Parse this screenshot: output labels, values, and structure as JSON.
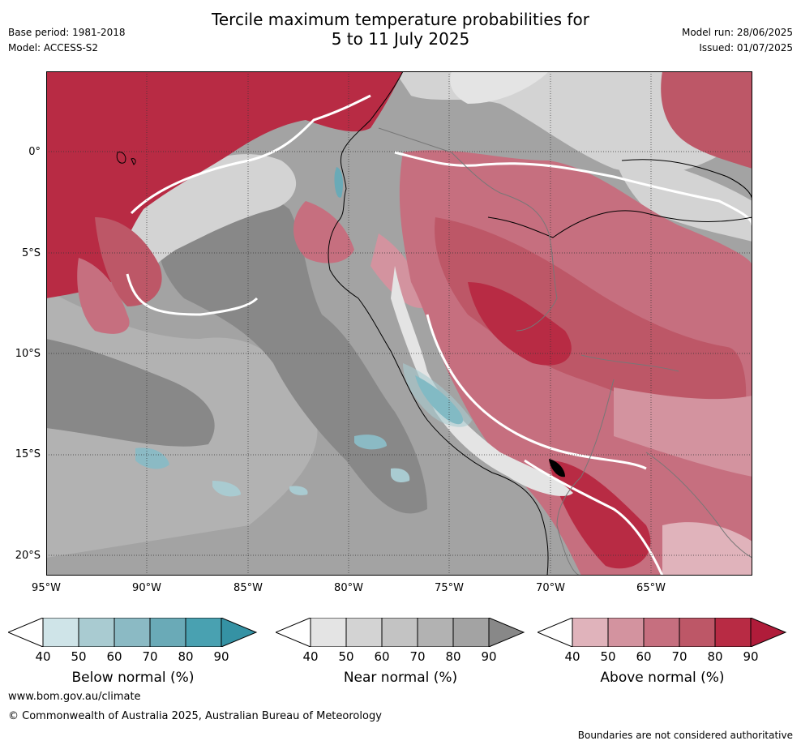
{
  "header": {
    "title_line1": "Tercile maximum temperature probabilities for",
    "title_line2": "5 to 11 July 2025",
    "base_period": "Base period: 1981-2018",
    "model": "Model: ACCESS-S2",
    "model_run": "Model run: 28/06/2025",
    "issued": "Issued: 01/07/2025"
  },
  "map": {
    "lat_labels": [
      "0°",
      "5°S",
      "10°S",
      "15°S",
      "20°S"
    ],
    "lon_labels": [
      "95°W",
      "90°W",
      "85°W",
      "80°W",
      "75°W",
      "70°W",
      "65°W"
    ],
    "colors": {
      "above": [
        "#e0b3bb",
        "#d3939f",
        "#c66f7f",
        "#bd5767",
        "#b82b44",
        "#b01c3a"
      ],
      "near": [
        "#e4e4e4",
        "#d3d3d3",
        "#c3c3c3",
        "#b2b2b2",
        "#a3a3a3",
        "#888888"
      ],
      "below": [
        "#cfe4e8",
        "#a9cbd1",
        "#8bbac4",
        "#6aaab7",
        "#49a1b1",
        "#3592a4"
      ]
    }
  },
  "colorbars": [
    {
      "label": "Below normal (%)",
      "ticks": [
        "40",
        "50",
        "60",
        "70",
        "80",
        "90"
      ]
    },
    {
      "label": "Near normal (%)",
      "ticks": [
        "40",
        "50",
        "60",
        "70",
        "80",
        "90"
      ]
    },
    {
      "label": "Above normal (%)",
      "ticks": [
        "40",
        "50",
        "60",
        "70",
        "80",
        "90"
      ]
    }
  ],
  "footer": {
    "website": "www.bom.gov.au/climate",
    "copyright": "© Commonwealth of Australia 2025, Australian Bureau of Meteorology",
    "disclaimer": "Boundaries are not considered authoritative"
  }
}
